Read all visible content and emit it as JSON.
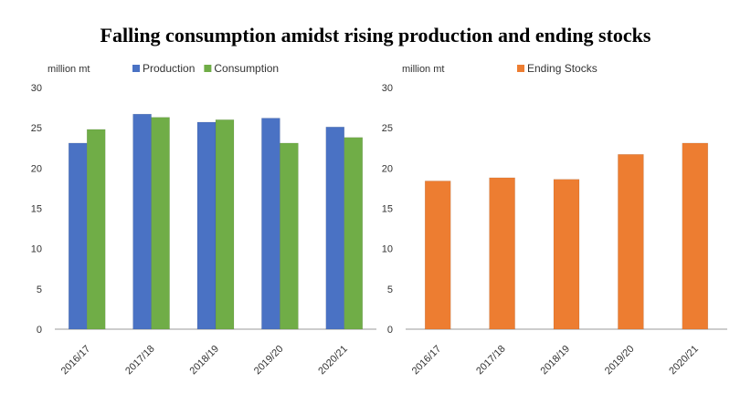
{
  "title": "Falling consumption amidst rising production and ending stocks",
  "colors": {
    "production": "#4a72c4",
    "consumption": "#70ad47",
    "stocks": "#ed7d31",
    "axis": "#999999"
  },
  "chart_data": [
    {
      "type": "bar",
      "ylabel": "million mt",
      "ylim": [
        0,
        30
      ],
      "yticks": [
        0,
        5,
        10,
        15,
        20,
        25,
        30
      ],
      "categories": [
        "2016/17",
        "2017/18",
        "2018/19",
        "2019/20",
        "2020/21"
      ],
      "legend": "top-center",
      "series": [
        {
          "name": "Production",
          "color": "#4a72c4",
          "values": [
            23.1,
            26.7,
            25.7,
            26.2,
            25.1
          ]
        },
        {
          "name": "Consumption",
          "color": "#70ad47",
          "values": [
            24.8,
            26.3,
            26.0,
            23.1,
            23.8
          ]
        }
      ]
    },
    {
      "type": "bar",
      "ylabel": "million mt",
      "ylim": [
        0,
        30
      ],
      "yticks": [
        0,
        5,
        10,
        15,
        20,
        25,
        30
      ],
      "categories": [
        "2016/17",
        "2017/18",
        "2018/19",
        "2019/20",
        "2020/21"
      ],
      "legend": "top-center",
      "series": [
        {
          "name": "Ending Stocks",
          "color": "#ed7d31",
          "values": [
            18.4,
            18.8,
            18.6,
            21.7,
            23.1
          ]
        }
      ]
    }
  ]
}
